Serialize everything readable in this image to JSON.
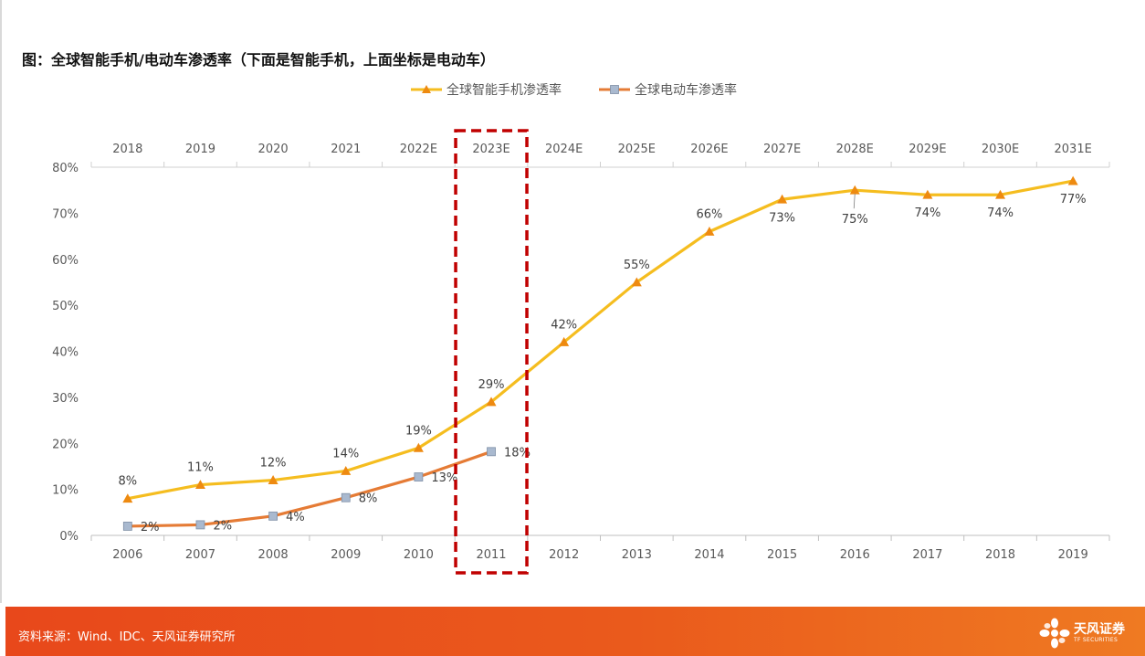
{
  "page": {
    "title": "图：全球智能手机/电动车渗透率（下面是智能手机，上面坐标是电动车）",
    "source": "资料来源：Wind、IDC、天风证券研究所",
    "brand_name": "天风证券",
    "brand_sub": "TF SECURITIES"
  },
  "colors": {
    "smartphone": "#f5bd1f",
    "smartphone_marker": "#ee8a10",
    "ev": "#e57b35",
    "ev_marker": "#a9b9cf",
    "highlight_box": "#c00000",
    "footer": "#e8481b"
  },
  "chart_data": {
    "type": "line",
    "y_ticks": [
      "0%",
      "10%",
      "20%",
      "30%",
      "40%",
      "50%",
      "60%",
      "70%",
      "80%"
    ],
    "ylim": [
      0,
      80
    ],
    "x_bottom": [
      "2006",
      "2007",
      "2008",
      "2009",
      "2010",
      "2011",
      "2012",
      "2013",
      "2014",
      "2015",
      "2016",
      "2017",
      "2018",
      "2019"
    ],
    "x_top": [
      "2018",
      "2019",
      "2020",
      "2021",
      "2022E",
      "2023E",
      "2024E",
      "2025E",
      "2026E",
      "2027E",
      "2028E",
      "2029E",
      "2030E",
      "2031E"
    ],
    "highlight_index": 5,
    "series": [
      {
        "name": "全球智能手机渗透率",
        "values": [
          8,
          11,
          12,
          14,
          19,
          29,
          42,
          55,
          66,
          73,
          75,
          74,
          74,
          77
        ],
        "labels": [
          "8%",
          "11%",
          "12%",
          "14%",
          "19%",
          "29%",
          "42%",
          "55%",
          "66%",
          "73%",
          "75%",
          "74%",
          "74%",
          "77%"
        ]
      },
      {
        "name": "全球电动车渗透率",
        "values": [
          2,
          2.3,
          4.2,
          8.2,
          12.7,
          18.2
        ],
        "labels": [
          "2%",
          "2%",
          "4%",
          "8%",
          "13%",
          "18%"
        ]
      }
    ]
  }
}
